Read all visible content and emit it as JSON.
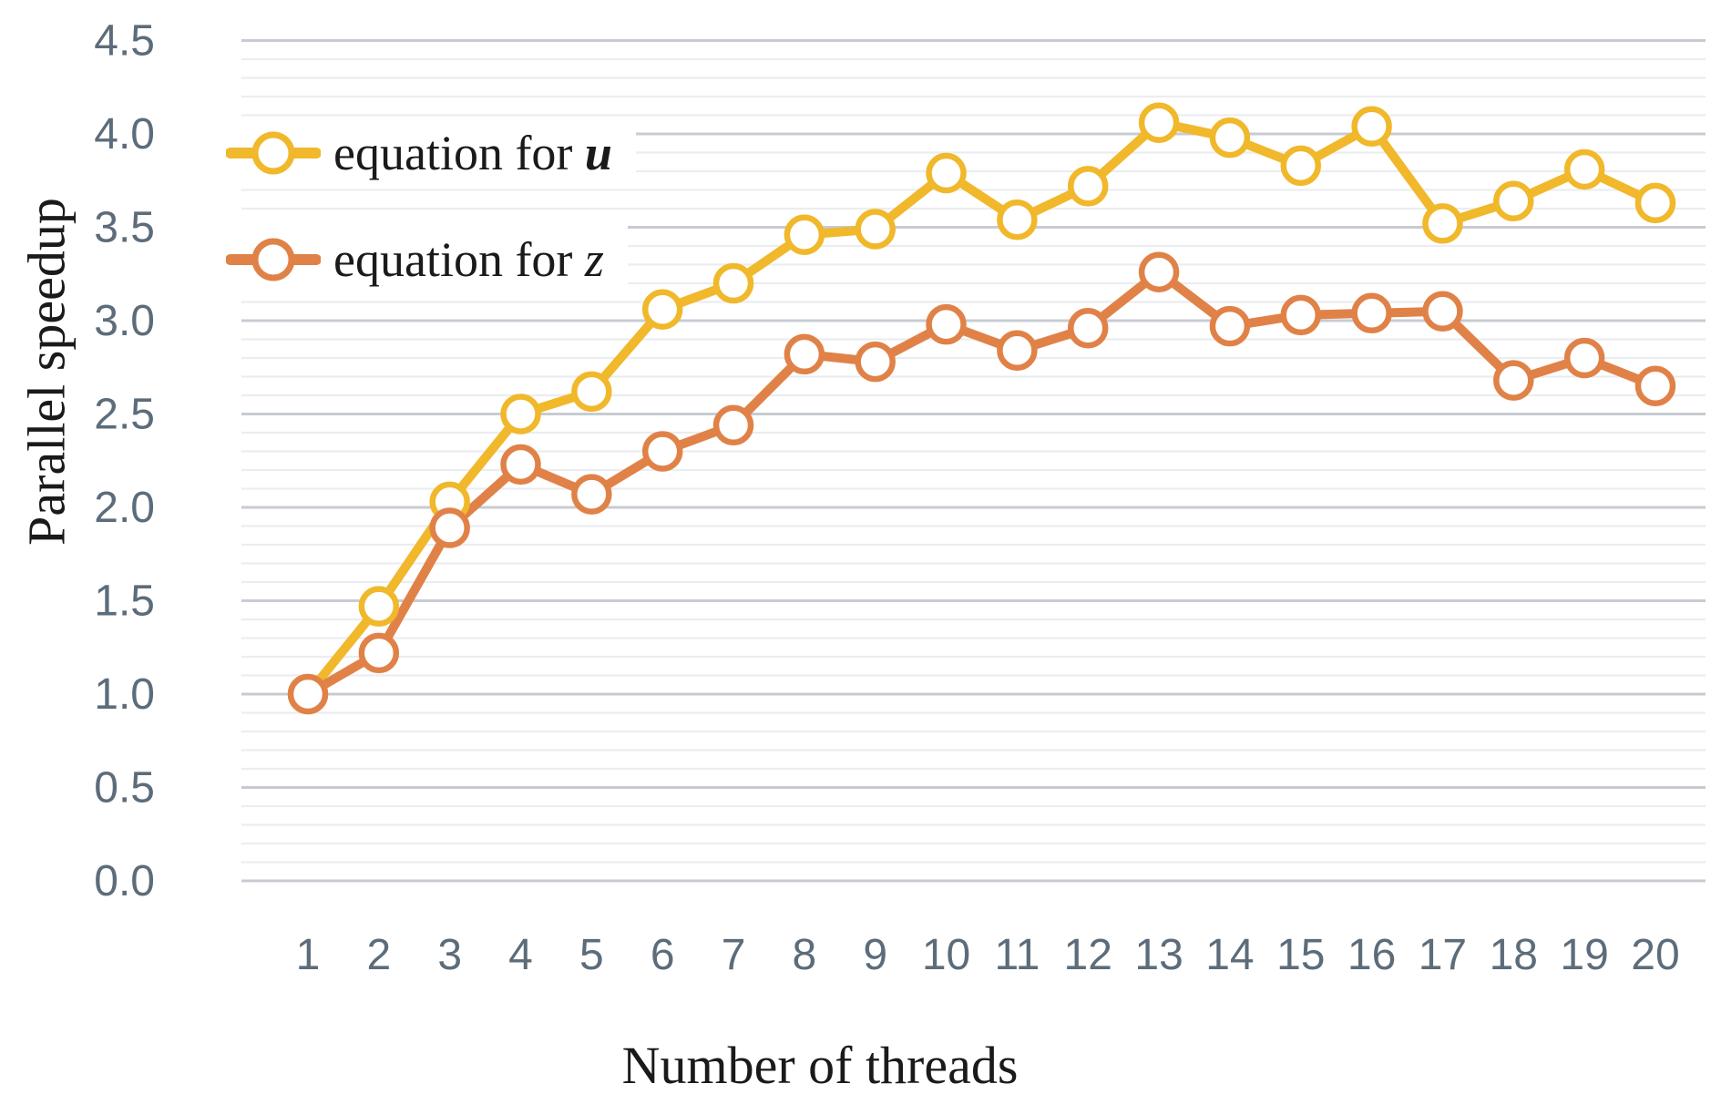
{
  "chart_data": {
    "type": "line",
    "title": "",
    "xlabel": "Number of threads",
    "ylabel": "Parallel speedup",
    "x": [
      1,
      2,
      3,
      4,
      5,
      6,
      7,
      8,
      9,
      10,
      11,
      12,
      13,
      14,
      15,
      16,
      17,
      18,
      19,
      20
    ],
    "x_ticks": [
      "1",
      "2",
      "3",
      "4",
      "5",
      "6",
      "7",
      "8",
      "9",
      "10",
      "11",
      "12",
      "13",
      "14",
      "15",
      "16",
      "17",
      "18",
      "19",
      "20"
    ],
    "y_ticks": [
      "0.0",
      "0.5",
      "1.0",
      "1.5",
      "2.0",
      "2.5",
      "3.0",
      "3.5",
      "4.0",
      "4.5"
    ],
    "ylim": [
      0.0,
      4.5
    ],
    "y_major_step": 0.5,
    "y_minor_step": 0.1,
    "grid": true,
    "legend_position": "top-left",
    "series": [
      {
        "name": "equation for u",
        "label_prefix": "equation for ",
        "label_var": "u",
        "color": "#F0B82A",
        "marker": "open-circle",
        "values": [
          1.0,
          1.47,
          2.03,
          2.5,
          2.62,
          3.06,
          3.2,
          3.46,
          3.49,
          3.79,
          3.54,
          3.72,
          4.06,
          3.98,
          3.83,
          4.04,
          3.52,
          3.64,
          3.81,
          3.63
        ]
      },
      {
        "name": "equation for z",
        "label_prefix": "equation for ",
        "label_var": "z",
        "color": "#E08248",
        "marker": "open-circle",
        "values": [
          1.0,
          1.22,
          1.89,
          2.23,
          2.07,
          2.3,
          2.44,
          2.82,
          2.78,
          2.98,
          2.84,
          2.96,
          3.26,
          2.97,
          3.03,
          3.04,
          3.05,
          2.68,
          2.8,
          2.65
        ]
      }
    ]
  },
  "colors": {
    "background": "#FFFFFF",
    "grid_major": "#C7CBD2",
    "grid_minor": "#ECEDF0",
    "tick_label": "#5C6C7A",
    "text": "#1A1A1A",
    "marker_fill": "#FFFFFF",
    "series_u": "#F0B82A",
    "series_z": "#E08248"
  }
}
